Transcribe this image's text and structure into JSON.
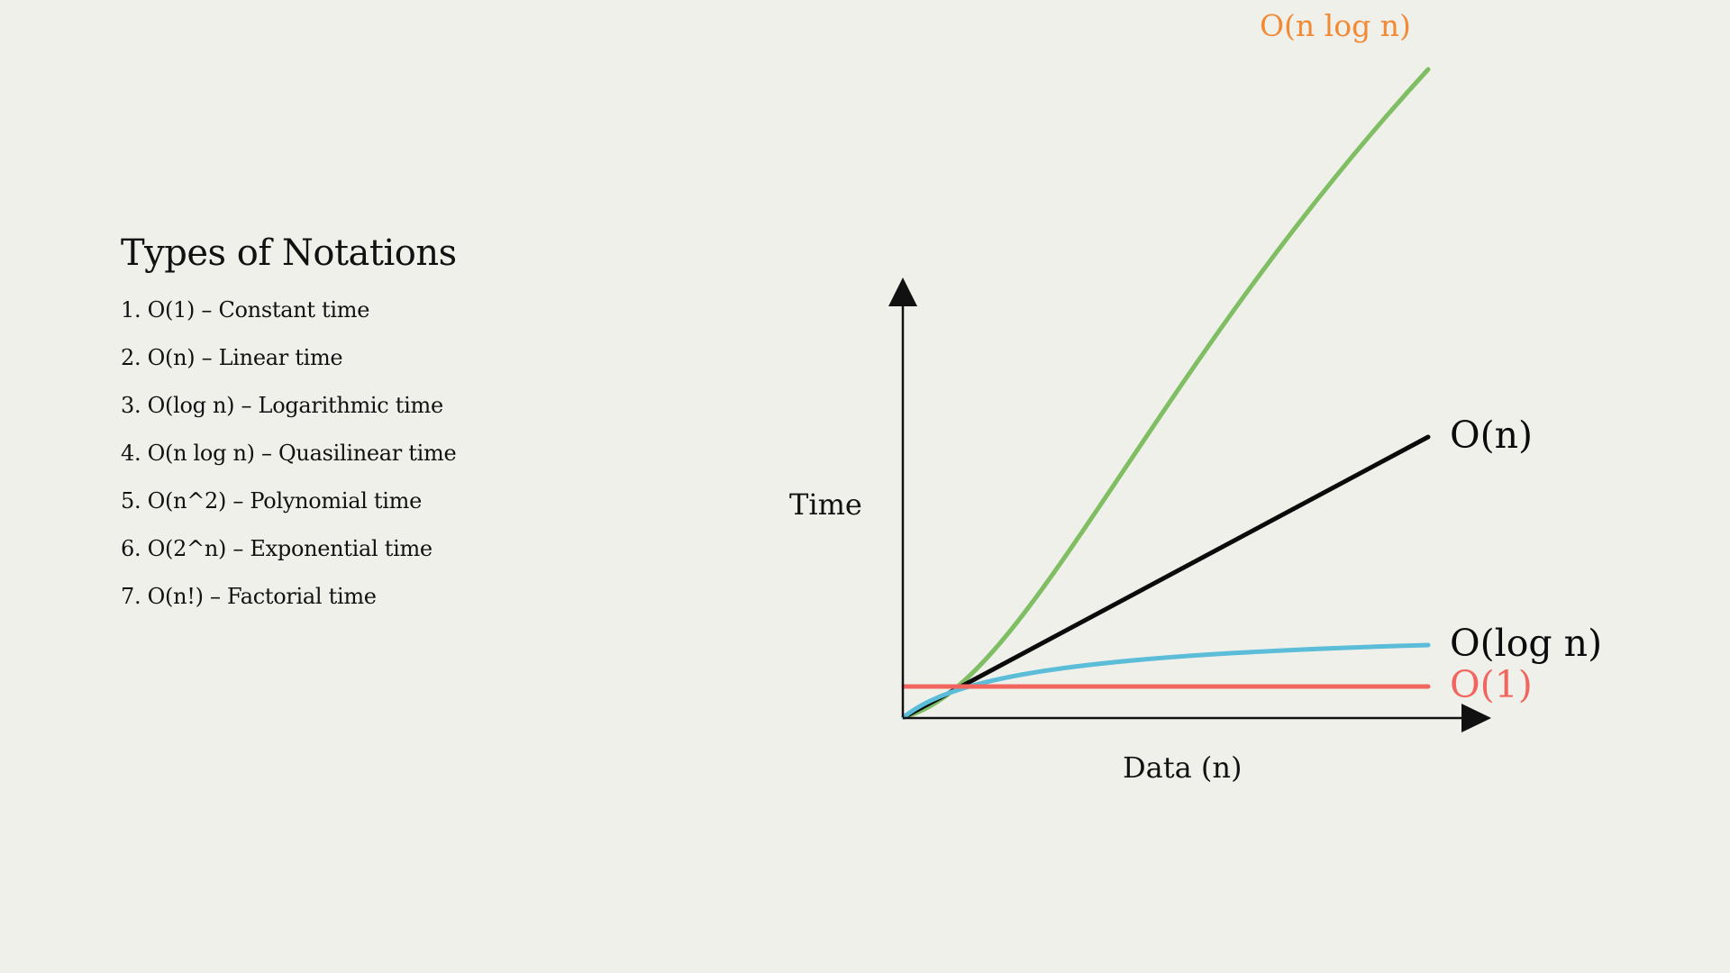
{
  "panel": {
    "title": "Types of Notations",
    "items": [
      "1. O(1) – Constant time",
      "2. O(n) – Linear time",
      "3. O(log n) – Logarithmic time",
      "4. O(n log n) – Quasilinear time",
      "5. O(n^2) – Polynomial time",
      "6. O(2^n) – Exponential time",
      "7. O(n!) – Factorial time"
    ]
  },
  "diagram": {
    "x_axis_label": "Data (n)",
    "y_axis_label": "Time",
    "axis_color": "#111111",
    "curves": [
      {
        "id": "n-log-n",
        "label": "O(n log n)",
        "curve_color": "#7fbe62",
        "label_color": "#f28a35"
      },
      {
        "id": "n",
        "label": "O(n)",
        "curve_color": "#0b0b0b",
        "label_color": "#0b0b0b"
      },
      {
        "id": "log-n",
        "label": "O(log n)",
        "curve_color": "#5bbdd8",
        "label_color": "#0b0b0b"
      },
      {
        "id": "constant",
        "label": "O(1)",
        "curve_color": "#f0665e",
        "label_color": "#f0665e"
      }
    ]
  }
}
